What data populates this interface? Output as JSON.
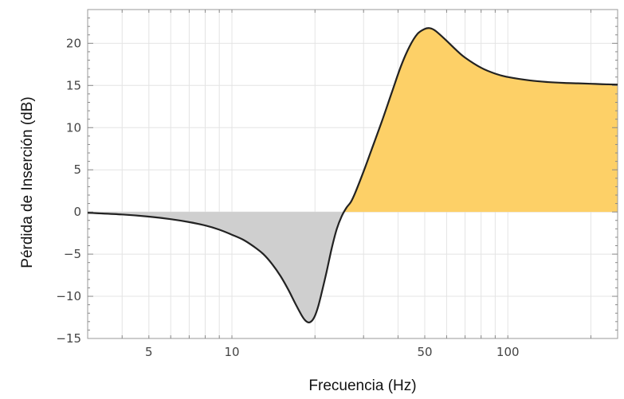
{
  "chart_data": {
    "type": "area",
    "xlabel": "Frecuencia (Hz)",
    "ylabel": "Pérdida de Inserción (dB)",
    "x_scale": "log",
    "xlim": [
      3,
      250
    ],
    "ylim": [
      -15,
      24
    ],
    "x_ticks": [
      5,
      10,
      50,
      100
    ],
    "x_tick_labels": [
      "5",
      "10",
      "50",
      "100"
    ],
    "y_ticks": [
      -15,
      -10,
      -5,
      0,
      5,
      10,
      15,
      20
    ],
    "y_tick_labels": [
      "−15",
      "−10",
      "−5",
      "0",
      "5",
      "10",
      "15",
      "20"
    ],
    "grid": true,
    "colors": {
      "positive_fill": "#fdd067",
      "negative_fill": "#cfcfcf",
      "line": "#222222"
    },
    "series": [
      {
        "x": [
          3,
          4,
          5,
          6,
          7,
          8,
          9,
          10,
          11,
          12,
          13,
          14,
          15,
          16,
          17,
          18,
          18.5,
          19,
          19.5,
          20,
          20.5,
          21,
          22,
          23,
          24,
          25,
          26,
          27,
          28,
          30,
          32,
          35,
          38,
          41,
          44,
          47,
          50,
          52,
          54,
          56,
          60,
          65,
          70,
          80,
          90,
          100,
          120,
          140,
          160,
          180,
          200,
          220,
          250
        ],
        "y": [
          -0.1,
          -0.3,
          -0.55,
          -0.85,
          -1.2,
          -1.6,
          -2.1,
          -2.7,
          -3.3,
          -4.1,
          -5.0,
          -6.2,
          -7.6,
          -9.2,
          -10.9,
          -12.4,
          -12.9,
          -13.1,
          -12.9,
          -12.3,
          -11.3,
          -10.0,
          -7.2,
          -4.3,
          -2.0,
          -0.5,
          0.5,
          1.2,
          2.3,
          4.8,
          7.3,
          10.8,
          14.2,
          17.3,
          19.6,
          21.1,
          21.7,
          21.8,
          21.6,
          21.2,
          20.3,
          19.2,
          18.3,
          17.1,
          16.4,
          16.0,
          15.6,
          15.4,
          15.3,
          15.25,
          15.2,
          15.15,
          15.1
        ]
      }
    ]
  }
}
